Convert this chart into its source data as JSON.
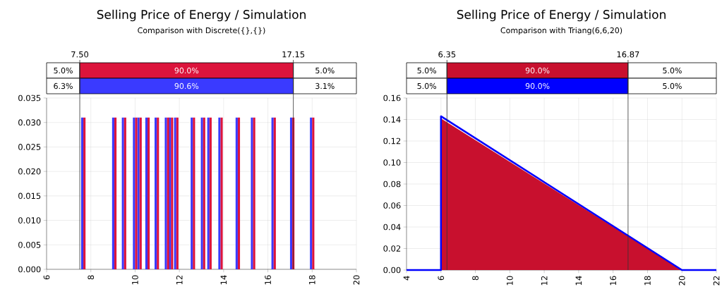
{
  "chart_data": [
    {
      "type": "bar",
      "title": "Selling Price of Energy / Simulation",
      "subtitle": "Comparison with Discrete({},{})",
      "series": [
        {
          "color": "#3a3aff",
          "values": [
            0.031,
            0.031,
            0.031,
            0.031,
            0.031,
            0.031,
            0.031,
            0.031,
            0.031,
            0.031,
            0.031,
            0.031,
            0.031,
            0.031,
            0.031,
            0.031,
            0.031,
            0.031,
            0.031
          ]
        },
        {
          "color": "#dc143c",
          "values": [
            0.031,
            0.031,
            0.031,
            0.031,
            0.031,
            0.031,
            0.031,
            0.031,
            0.031,
            0.031,
            0.031,
            0.031,
            0.031,
            0.031,
            0.031,
            0.031,
            0.031,
            0.031,
            0.031
          ]
        }
      ],
      "x": [
        7.66,
        9.06,
        9.5,
        10.0,
        10.2,
        10.56,
        10.98,
        11.44,
        11.62,
        11.86,
        12.61,
        13.07,
        13.36,
        13.86,
        14.64,
        15.33,
        16.26,
        17.1,
        18.0
      ],
      "xlim": [
        6,
        20
      ],
      "xticks": [
        6,
        8,
        10,
        12,
        14,
        16,
        18,
        20
      ],
      "ylim": [
        0,
        0.035
      ],
      "yticks": [
        {
          "value": 0,
          "label": "0.000"
        },
        {
          "value": 0.005,
          "label": "0.005"
        },
        {
          "value": 0.01,
          "label": "0.010"
        },
        {
          "value": 0.015,
          "label": "0.015"
        },
        {
          "value": 0.02,
          "label": "0.020"
        },
        {
          "value": 0.025,
          "label": "0.025"
        },
        {
          "value": 0.03,
          "label": "0.030"
        },
        {
          "value": 0.035,
          "label": "0.035"
        }
      ],
      "grid": true,
      "ref_lines": [
        {
          "axis": "x",
          "value": 7.5,
          "label": "7.50"
        },
        {
          "axis": "x",
          "value": 17.15,
          "label": "17.15"
        }
      ],
      "annotations": [
        "5.0%",
        "90.0%",
        "5.0%",
        "6.3%",
        "90.6%",
        "3.1%"
      ]
    },
    {
      "type": "area",
      "title": "Selling Price of Energy / Simulation",
      "subtitle": "Comparison with Triang(6,6,20)",
      "series": [
        {
          "type": "line",
          "color": "#0000ff",
          "x": [
            4,
            6,
            6,
            20,
            22
          ],
          "values": [
            0,
            0,
            0.143,
            0,
            0
          ]
        },
        {
          "type": "area",
          "color": "#c8102e",
          "x": [
            6,
            20
          ],
          "values": [
            0.141,
            0
          ]
        }
      ],
      "xlim": [
        4,
        22
      ],
      "xticks": [
        4,
        6,
        8,
        10,
        12,
        14,
        16,
        18,
        20,
        22
      ],
      "ylim": [
        0,
        0.16
      ],
      "yticks": [
        {
          "value": 0,
          "label": "0.00"
        },
        {
          "value": 0.02,
          "label": "0.02"
        },
        {
          "value": 0.04,
          "label": "0.04"
        },
        {
          "value": 0.06,
          "label": "0.06"
        },
        {
          "value": 0.08,
          "label": "0.08"
        },
        {
          "value": 0.1,
          "label": "0.10"
        },
        {
          "value": 0.12,
          "label": "0.12"
        },
        {
          "value": 0.14,
          "label": "0.14"
        },
        {
          "value": 0.16,
          "label": "0.16"
        }
      ],
      "grid": true,
      "ref_lines": [
        {
          "axis": "x",
          "value": 6.35,
          "label": "6.35"
        },
        {
          "axis": "x",
          "value": 16.87,
          "label": "16.87"
        }
      ],
      "annotations": [
        "5.0%",
        "90.0%",
        "5.0%",
        "5.0%",
        "90.0%",
        "5.0%"
      ]
    }
  ]
}
